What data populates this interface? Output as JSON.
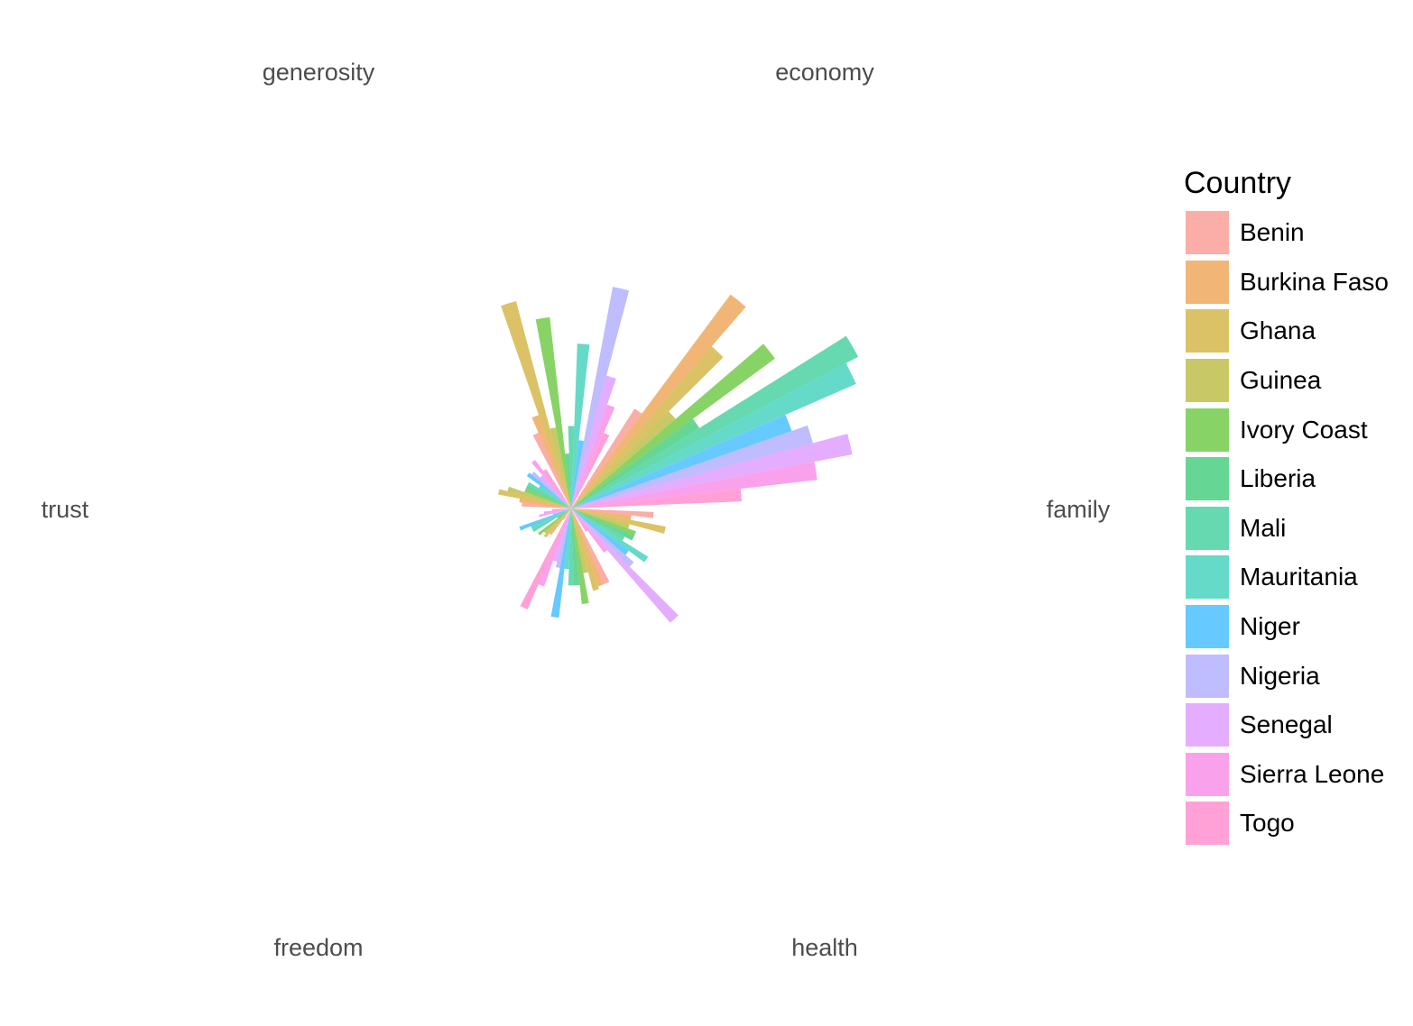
{
  "chart_data": {
    "type": "bar",
    "coord": "polar",
    "categories": [
      "economy",
      "family",
      "health",
      "freedom",
      "trust",
      "generosity"
    ],
    "legend": {
      "title": "Country",
      "position": "right"
    },
    "series": [
      {
        "name": "Benin",
        "color": "#F8766D",
        "values": [
          0.3,
          0.43,
          0.3,
          0.3,
          0.05,
          0.18
        ]
      },
      {
        "name": "Burkina Faso",
        "color": "#E7861B",
        "values": [
          0.36,
          0.97,
          0.22,
          0.3,
          0.12,
          0.19
        ]
      },
      {
        "name": "Ghana",
        "color": "#C59900",
        "values": [
          0.78,
          0.78,
          0.35,
          0.31,
          0.14,
          0.27
        ]
      },
      {
        "name": "Guinea",
        "color": "#A3A500",
        "values": [
          0.3,
          0.5,
          0.22,
          0.24,
          0.13,
          0.24
        ]
      },
      {
        "name": "Ivory Coast",
        "color": "#39B600",
        "values": [
          0.7,
          0.92,
          0.25,
          0.35,
          0.15,
          0.18
        ]
      },
      {
        "name": "Liberia",
        "color": "#00BB4E",
        "values": [
          0.2,
          0.55,
          0.25,
          0.28,
          0.06,
          0.18
        ]
      },
      {
        "name": "Mali",
        "color": "#00BF7D",
        "values": [
          0.3,
          1.18,
          0.22,
          0.28,
          0.16,
          0.18
        ]
      },
      {
        "name": "Mauritania",
        "color": "#00C1A3",
        "values": [
          0.6,
          1.13,
          0.33,
          0.22,
          0.16,
          0.14
        ]
      },
      {
        "name": "Niger",
        "color": "#00A5FF",
        "values": [
          0.25,
          0.85,
          0.26,
          0.4,
          0.2,
          0.2
        ]
      },
      {
        "name": "Nigeria",
        "color": "#9590FF",
        "values": [
          0.82,
          0.91,
          0.3,
          0.22,
          0.07,
          0.19
        ]
      },
      {
        "name": "Senegal",
        "color": "#D376FF",
        "values": [
          0.5,
          1.04,
          0.55,
          0.2,
          0.12,
          0.16
        ]
      },
      {
        "name": "Sierra Leone",
        "color": "#F763E0",
        "values": [
          0.4,
          0.9,
          0.2,
          0.3,
          0.1,
          0.22
        ]
      },
      {
        "name": "Togo",
        "color": "#FF62BC",
        "values": [
          0.3,
          0.62,
          0.1,
          0.4,
          0.07,
          0.17
        ]
      }
    ]
  }
}
